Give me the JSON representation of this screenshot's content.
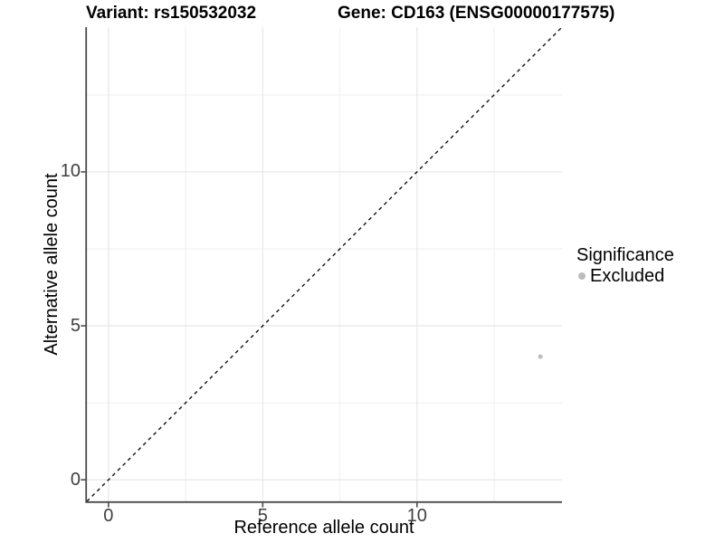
{
  "chart_data": {
    "type": "scatter",
    "title_left": "Variant: rs150532032",
    "title_right": "Gene: CD163 (ENSG00000177575)",
    "xlabel": "Reference allele count",
    "ylabel": "Alternative allele count",
    "xlim": [
      -0.7,
      14.7
    ],
    "ylim": [
      -0.7,
      14.7
    ],
    "x_major_ticks": [
      0,
      5,
      10
    ],
    "y_major_ticks": [
      0,
      5,
      10
    ],
    "x_minor_ticks": [
      2.5,
      7.5,
      12.5
    ],
    "y_minor_ticks": [
      2.5,
      7.5,
      12.5
    ],
    "grid": true,
    "identity_line": {
      "style": "dashed",
      "x1": -0.7,
      "y1": -0.7,
      "x2": 14.7,
      "y2": 14.7,
      "color": "#111111"
    },
    "series": [
      {
        "name": "Excluded",
        "color": "#bdbdbd",
        "points": [
          {
            "x": 14,
            "y": 4
          }
        ]
      }
    ],
    "legend": {
      "title": "Significance",
      "position": "right",
      "items": [
        {
          "label": "Excluded",
          "color": "#bdbdbd"
        }
      ]
    }
  },
  "colors": {
    "background": "#ffffff",
    "grid_major": "#e2e2e2",
    "grid_minor": "#efefef",
    "axis_line": "#4a4a4a",
    "tick_mark": "#4a4a4a",
    "tick_label": "#404040",
    "axis_title": "#000000",
    "title": "#000000",
    "point": "#bdbdbd"
  }
}
